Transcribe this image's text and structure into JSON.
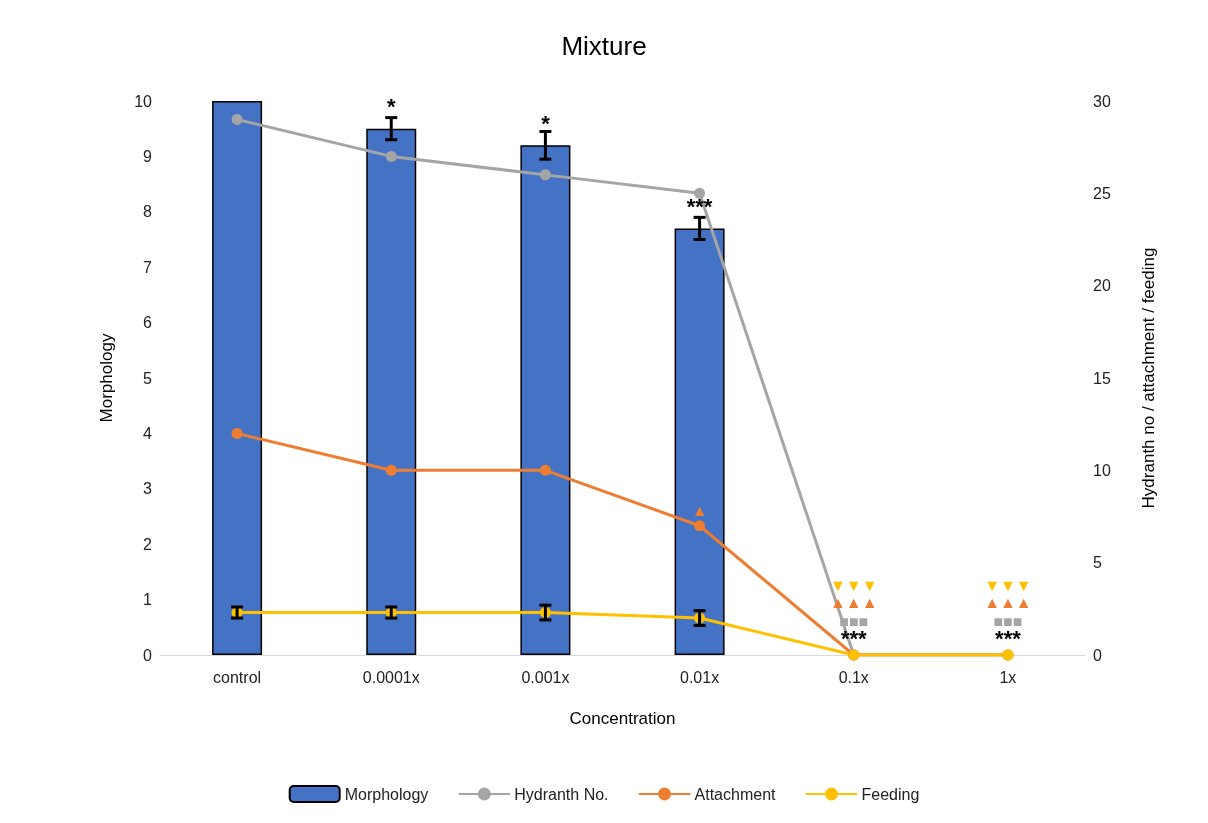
{
  "chart_data": {
    "type": "bar",
    "title": "Mixture",
    "xlabel": "Concentration",
    "ylabel": "Morphology",
    "y2label": "Hydranth no / attachment / feeding",
    "categories": [
      "control",
      "0.0001x",
      "0.001x",
      "0.01x",
      "0.1x",
      "1x"
    ],
    "series": [
      {
        "name": "Morphology",
        "color": "#4472c4",
        "values": [
          10,
          9.5,
          9.2,
          7.7,
          0,
          0
        ],
        "errors": [
          null,
          0.2,
          0.25,
          0.2,
          null,
          null
        ]
      },
      {
        "name": "Hydranth No.",
        "type": "line",
        "axis": "y2",
        "color": "#a5a5a5",
        "values": [
          29,
          27,
          26,
          25,
          0,
          0
        ]
      },
      {
        "name": "Attachment",
        "type": "line",
        "axis": "y2",
        "color": "#ed7d31",
        "values": [
          12,
          10,
          10,
          7,
          0,
          0
        ]
      },
      {
        "name": "Feeding",
        "type": "line",
        "axis": "y2",
        "color": "#ffc000",
        "values": [
          2.3,
          2.3,
          2.3,
          2.0,
          0,
          0
        ],
        "errors": [
          0.3,
          0.3,
          0.4,
          0.4,
          null,
          null
        ]
      }
    ],
    "annotations": [
      "*",
      "*",
      "***",
      "***",
      "***",
      "▲",
      "■■■",
      "▲▲▲",
      "▼▼▼",
      "■■■",
      "▲▲▲",
      "▼▼▼"
    ],
    "ylim": [
      0,
      10
    ],
    "yticks": [
      0,
      1,
      2,
      3,
      4,
      5,
      6,
      7,
      8,
      9,
      10
    ],
    "y2lim": [
      0,
      30
    ],
    "y2ticks": [
      0,
      5,
      10,
      15,
      20,
      25,
      30
    ],
    "marker": "circle",
    "grid": false,
    "legend": "bottom"
  }
}
